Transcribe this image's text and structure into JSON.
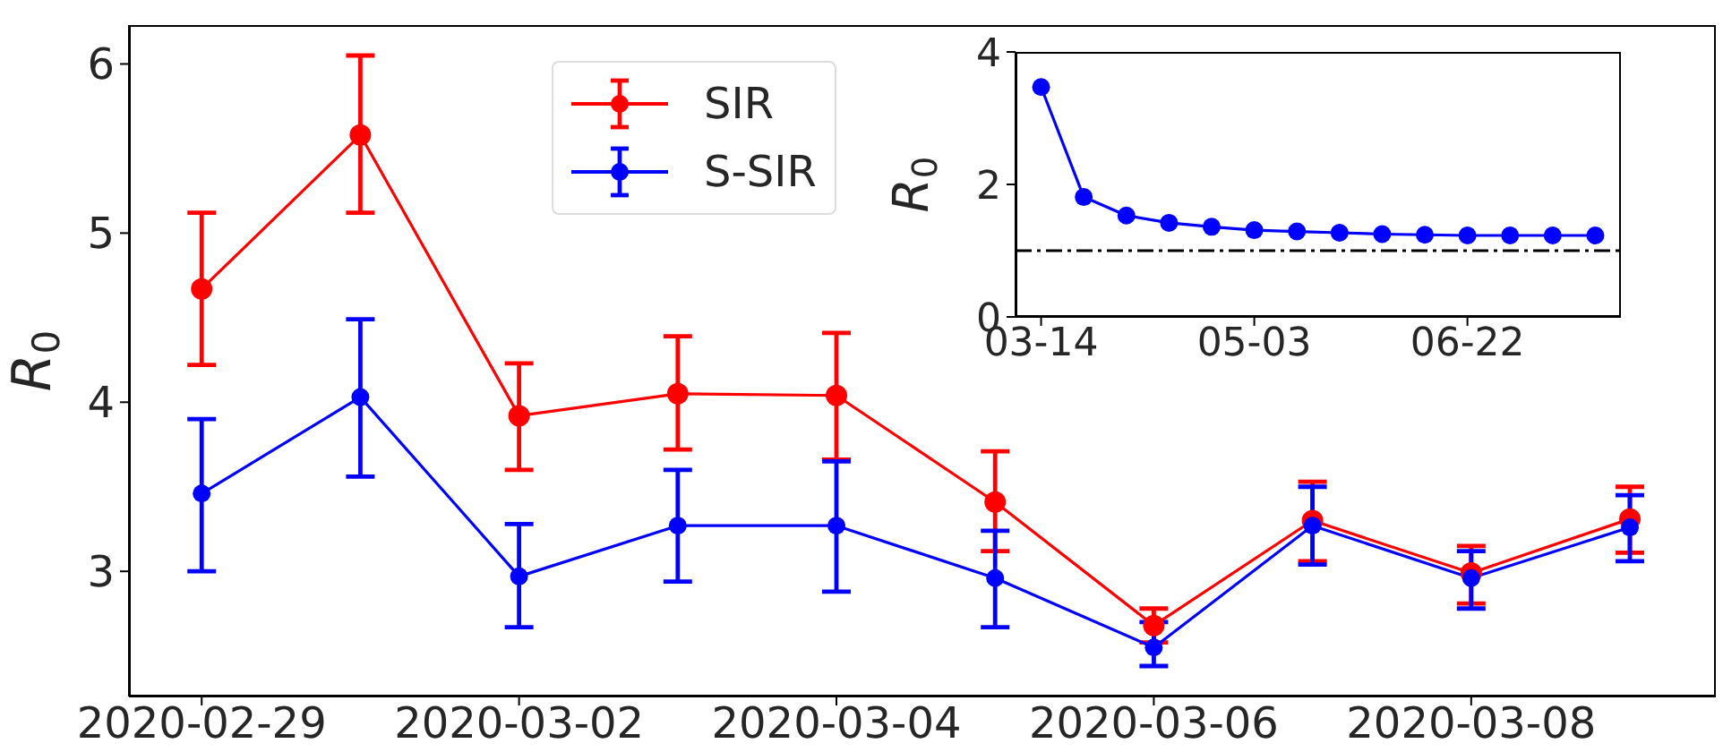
{
  "chart_data": [
    {
      "type": "line",
      "ylabel": "R$_{0}$",
      "x": [
        "2020-02-29",
        "2020-03-01",
        "2020-03-02",
        "2020-03-03",
        "2020-03-04",
        "2020-03-05",
        "2020-03-06",
        "2020-03-07",
        "2020-03-08",
        "2020-03-09"
      ],
      "xlim": [
        "2020-02-28T13:00",
        "2020-03-09T13:00"
      ],
      "xticks": [
        "2020-02-29",
        "2020-03-02",
        "2020-03-04",
        "2020-03-06",
        "2020-03-08"
      ],
      "ylim": [
        2.26,
        6.23
      ],
      "yticks": [
        3,
        4,
        5,
        6
      ],
      "marker": "circle",
      "legend": "top",
      "grid": false,
      "series": [
        {
          "name": "SIR",
          "color": "#ff0000",
          "values": [
            4.67,
            5.58,
            3.92,
            4.05,
            4.04,
            3.41,
            2.68,
            3.3,
            2.99,
            3.31
          ],
          "errors": [
            [
              4.22,
              5.12
            ],
            [
              5.12,
              6.05
            ],
            [
              3.6,
              4.23
            ],
            [
              3.72,
              4.39
            ],
            [
              3.66,
              4.41
            ],
            [
              3.12,
              3.71
            ],
            [
              2.58,
              2.78
            ],
            [
              3.06,
              3.53
            ],
            [
              2.81,
              3.15
            ],
            [
              3.11,
              3.5
            ]
          ]
        },
        {
          "name": "S-SIR",
          "color": "#0000ff",
          "values": [
            3.46,
            4.03,
            2.97,
            3.27,
            3.27,
            2.96,
            2.55,
            3.27,
            2.96,
            3.26
          ],
          "errors": [
            [
              3.0,
              3.9
            ],
            [
              3.56,
              4.49
            ],
            [
              2.67,
              3.28
            ],
            [
              2.94,
              3.6
            ],
            [
              2.88,
              3.65
            ],
            [
              2.67,
              3.24
            ],
            [
              2.44,
              2.7
            ],
            [
              3.04,
              3.5
            ],
            [
              2.78,
              3.12
            ],
            [
              3.06,
              3.45
            ]
          ]
        }
      ]
    },
    {
      "type": "line",
      "ylabel": "R$_{0}$",
      "x": [
        "--03-14",
        "--03-24",
        "--04-03",
        "--04-13",
        "--04-23",
        "--05-03",
        "--05-13",
        "--05-23",
        "--06-02",
        "--06-12",
        "--06-22",
        "--07-02",
        "--07-12",
        "--07-22"
      ],
      "xlim": [
        "--03-08",
        "--07-28"
      ],
      "xticks": [
        {
          "value": "--03-14",
          "label": "03-14"
        },
        {
          "value": "--05-03",
          "label": "05-03"
        },
        {
          "value": "--06-22",
          "label": "06-22"
        }
      ],
      "ylim": [
        0,
        4
      ],
      "yticks": [
        0,
        2,
        4
      ],
      "marker": "circle",
      "grid": false,
      "ref_lines": [
        {
          "axis": "y",
          "value": 1,
          "color": "#000000",
          "line_style": "dashdot"
        }
      ],
      "series": [
        {
          "color": "#0000ff",
          "values": [
            3.47,
            1.81,
            1.53,
            1.42,
            1.36,
            1.31,
            1.29,
            1.27,
            1.25,
            1.24,
            1.23,
            1.23,
            1.23,
            1.23
          ]
        }
      ]
    }
  ]
}
